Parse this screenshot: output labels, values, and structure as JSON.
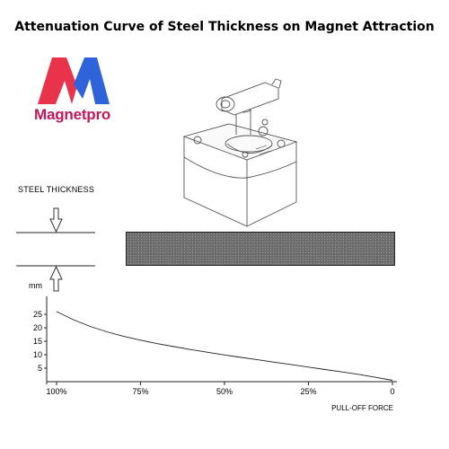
{
  "title": "Attenuation Curve of Steel Thickness on Magnet Attraction",
  "logo": {
    "brand": "Magnetpro",
    "colors": {
      "left": "#e8334a",
      "right": "#2f63d9",
      "text": "#c2185b"
    }
  },
  "illustration": {
    "magnet_icon": "switchable-magnet-base-illustration",
    "steel_label": "STEEL THICKNESS",
    "plate_icon": "steel-plate-texture"
  },
  "chart_data": {
    "type": "line",
    "ylabel": "mm",
    "xlabel": "PULL-OFF FORCE",
    "x_tick_labels": [
      "100%",
      "75%",
      "50%",
      "25%",
      "0"
    ],
    "x_tick_values": [
      100,
      75,
      50,
      25,
      0
    ],
    "y_ticks": [
      5,
      10,
      15,
      20,
      25
    ],
    "xlim": [
      100,
      0
    ],
    "ylim": [
      0,
      30
    ],
    "grid": false,
    "series": [
      {
        "x": [
          100,
          95,
          90,
          85,
          80,
          75,
          70,
          65,
          60,
          55,
          50,
          45,
          40,
          35,
          30,
          25,
          20,
          15,
          10,
          5,
          0
        ],
        "y": [
          26,
          23,
          20.5,
          18.5,
          16.8,
          15.4,
          14.1,
          13,
          11.9,
          10.9,
          9.9,
          9,
          8.1,
          7.2,
          6.3,
          5.4,
          4.5,
          3.6,
          2.7,
          1.6,
          0.5
        ],
        "color": "#222222"
      }
    ]
  }
}
